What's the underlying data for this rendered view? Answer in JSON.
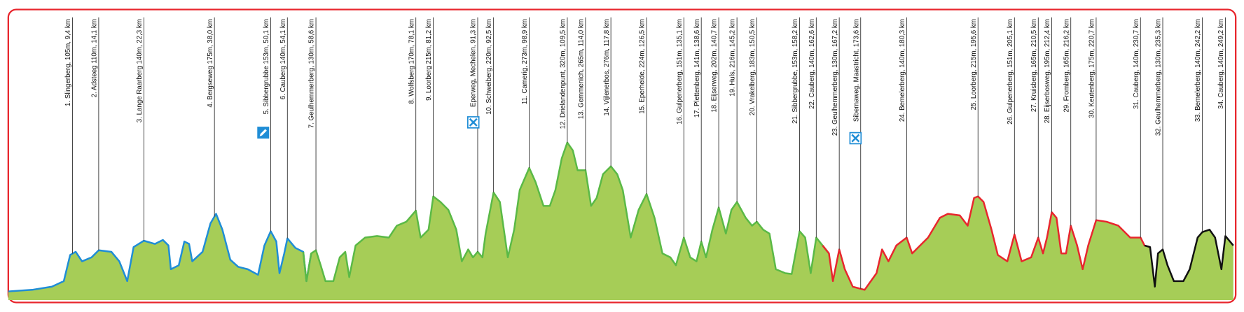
{
  "climbs": [
    "1. Slingerberg, 105m, 9,4 km",
    "2. Adsteeg 110m, 14,1 km",
    "3. Lange Raarberg 140m, 22,3 km",
    "4. Bergseweg 175m, 38,0 km",
    "5. Sibbergrubbe 153m, 50,1 km",
    "6. Cauberg 140m, 54,1 km",
    "7. Geulhemmerberg, 130m, 58,6 km",
    "8. Wolfsberg 170m, 78,1 km",
    "9. Loorberg 215m, 81,2 km",
    "Eperweg, Mechelen, 91,3 km",
    "10. Schweiberg, 220m, 92,5 km",
    "11. Camerig, 273m, 98,9 km",
    "12. Drielandenpunt, 320m, 109,5 km",
    "13. Gemmenich, 265m, 114,0 km",
    "14. Vijlenerbos, 276m, 117,8 km",
    "15. Eperheide, 224m, 126,5 km",
    "16. Gulpenerberg, 151m, 135,1 km",
    "17. Plettenberg, 141m, 138,6 km",
    "18. Eijserweg, 202m, 140,7 km",
    "19. Huls, 216m, 145,2 km",
    "20. Vrakelberg, 183m, 150,5 km",
    "21. Sibbergrubbe, 153m, 158,2 km",
    "22. Cauberg, 140m, 162,6 km",
    "23. Geulhemmerberg, 130m, 167,2 km",
    "Sibernaweg, Maastricht, 173,6 km",
    "24. Bemelerberg, 140m, 180,3 km",
    "25. Loorberg, 215m, 195,6 km",
    "26. Gulpenerberg, 151m, 205,1 km",
    "27. Kruisberg, 165m, 210,5 km",
    "28. Eijserbosweg, 195m, 212,4 km",
    "29. Fromberg, 165m, 216,2 km",
    "30. Keutenberg, 175m, 220,7 km",
    "31. Cauberg, 140m, 230,7 km",
    "32. Geulhemmerberg, 130m, 235,3 km",
    "33. Bemelerberg, 140m, 242,2 km",
    "34. Cauberg, 140m, 249,2 km"
  ]
}
